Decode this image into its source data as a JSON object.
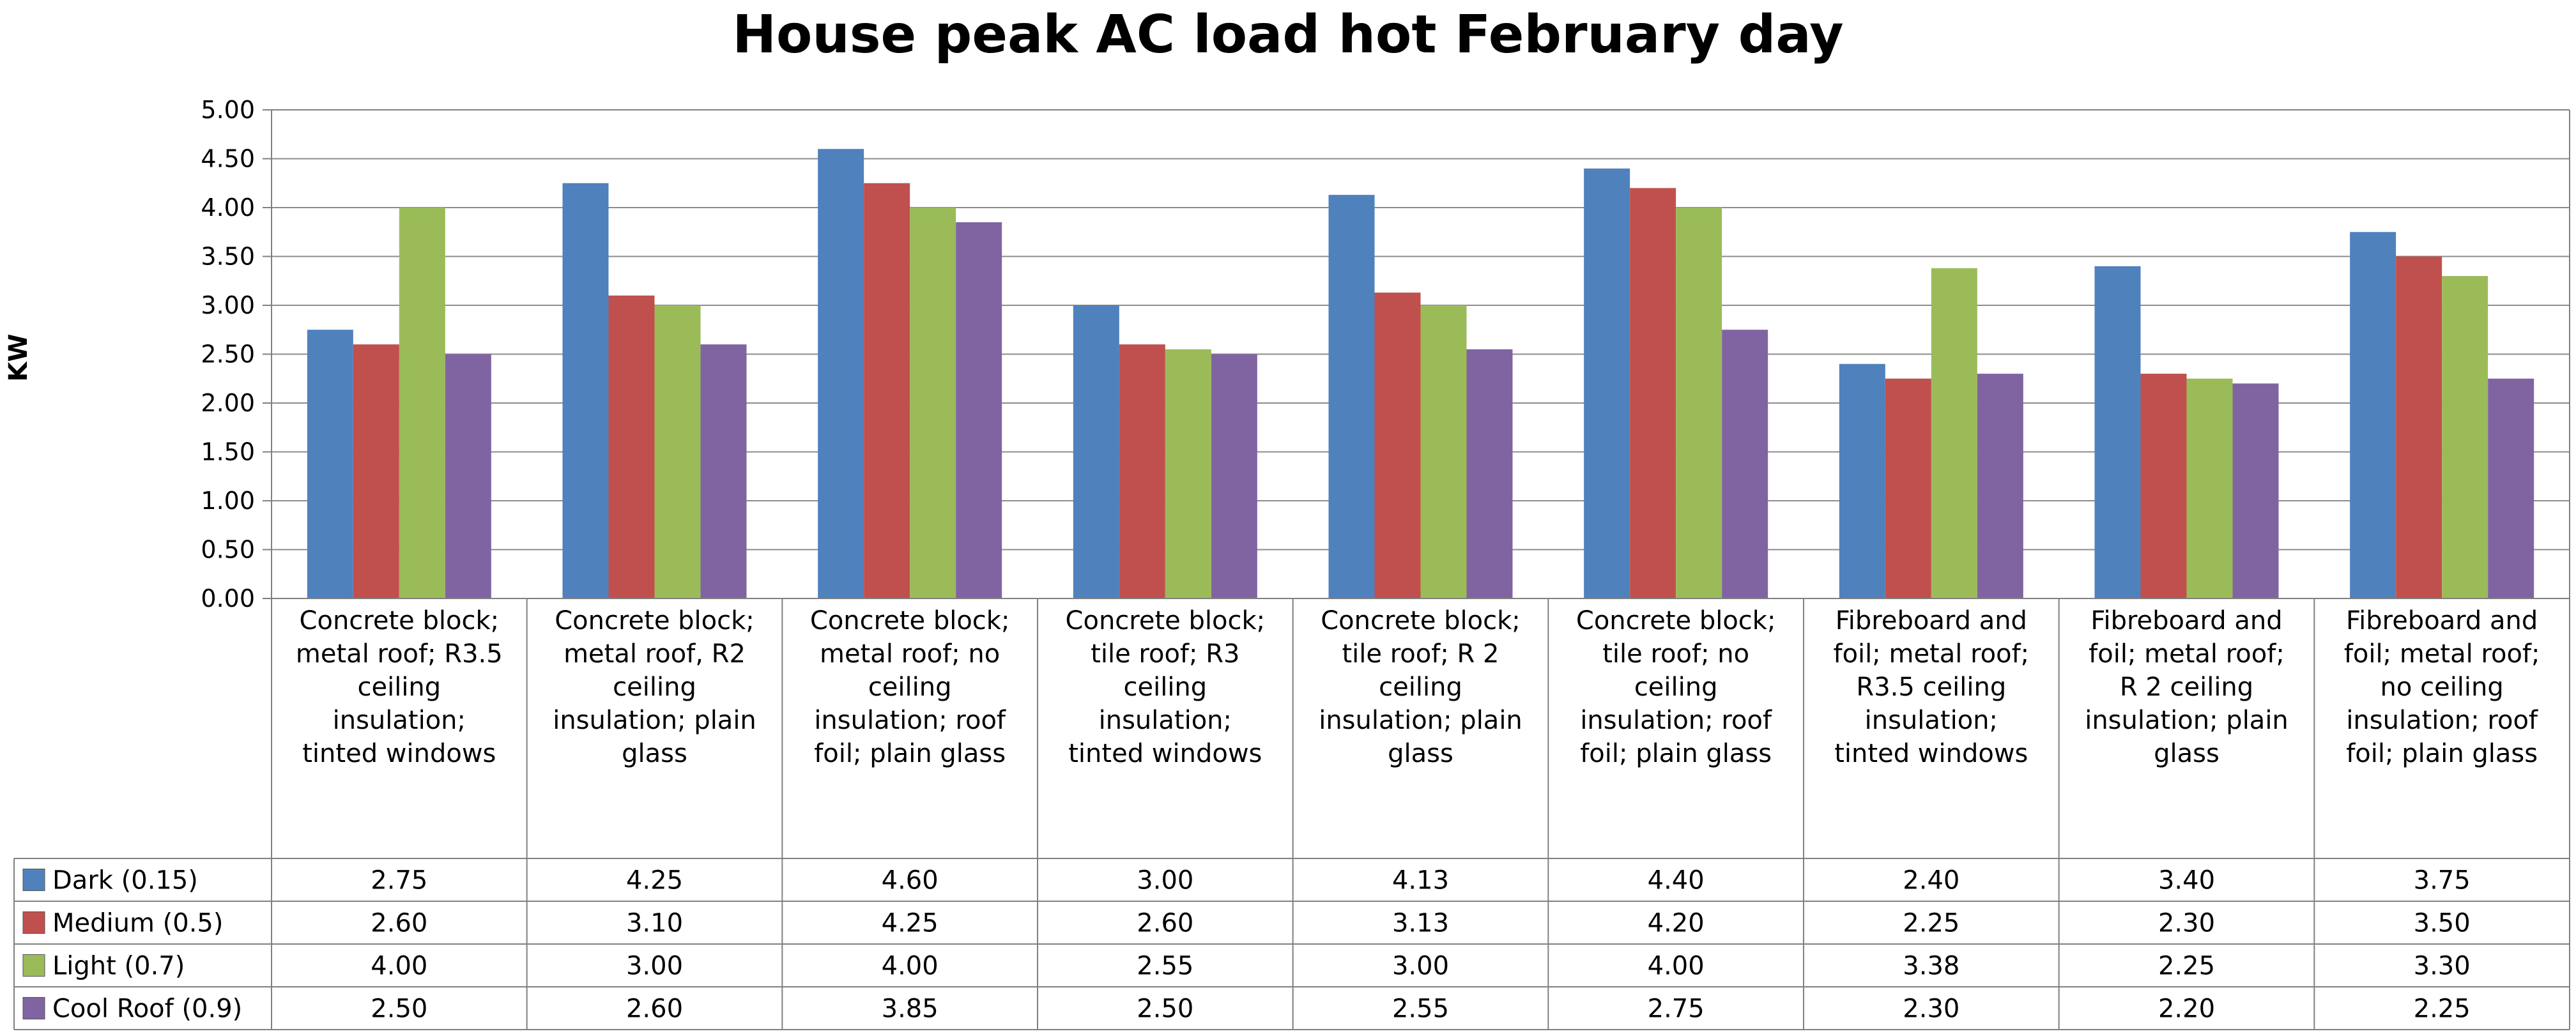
{
  "chart_data": {
    "type": "bar",
    "title": "House peak AC load hot February day",
    "ylabel": "KW",
    "ylim": [
      0,
      5
    ],
    "ytick_step": 0.5,
    "yticks": [
      "0.00",
      "0.50",
      "1.00",
      "1.50",
      "2.00",
      "2.50",
      "3.00",
      "3.50",
      "4.00",
      "4.50",
      "5.00"
    ],
    "grid": true,
    "legend": "data-table-left",
    "categories": [
      [
        "Concrete block;",
        "metal roof; R3.5",
        "ceiling",
        "insulation;",
        "tinted windows"
      ],
      [
        "Concrete block;",
        "metal roof, R2",
        "ceiling",
        "insulation; plain",
        "glass"
      ],
      [
        "Concrete block;",
        "metal roof; no",
        "ceiling",
        "insulation; roof",
        "foil; plain glass"
      ],
      [
        "Concrete block;",
        "tile roof; R3",
        "ceiling",
        "insulation;",
        "tinted windows"
      ],
      [
        "Concrete block;",
        "tile roof; R 2",
        "ceiling",
        "insulation; plain",
        "glass"
      ],
      [
        "Concrete block;",
        "tile roof; no",
        "ceiling",
        "insulation; roof",
        "foil; plain glass"
      ],
      [
        "Fibreboard and",
        "foil; metal roof;",
        "R3.5 ceiling",
        "insulation;",
        "tinted windows"
      ],
      [
        "Fibreboard and",
        "foil; metal roof;",
        "R 2 ceiling",
        "insulation; plain",
        "glass"
      ],
      [
        "Fibreboard and",
        "foil; metal roof;",
        "no ceiling",
        "insulation; roof",
        "foil; plain glass"
      ]
    ],
    "series": [
      {
        "name": "Dark (0.15)",
        "color": "#4F81BD",
        "values": [
          2.75,
          4.25,
          4.6,
          3.0,
          4.13,
          4.4,
          2.4,
          3.4,
          3.75
        ],
        "labels": [
          "2.75",
          "4.25",
          "4.60",
          "3.00",
          "4.13",
          "4.40",
          "2.40",
          "3.40",
          "3.75"
        ]
      },
      {
        "name": "Medium (0.5)",
        "color": "#C0504D",
        "values": [
          2.6,
          3.1,
          4.25,
          2.6,
          3.13,
          4.2,
          2.25,
          2.3,
          3.5
        ],
        "labels": [
          "2.60",
          "3.10",
          "4.25",
          "2.60",
          "3.13",
          "4.20",
          "2.25",
          "2.30",
          "3.50"
        ]
      },
      {
        "name": "Light (0.7)",
        "color": "#9BBB59",
        "values": [
          4.0,
          3.0,
          4.0,
          2.55,
          3.0,
          4.0,
          3.38,
          2.25,
          3.3
        ],
        "labels": [
          "4.00",
          "3.00",
          "4.00",
          "2.55",
          "3.00",
          "4.00",
          "3.38",
          "2.25",
          "3.30"
        ]
      },
      {
        "name": "Cool Roof (0.9)",
        "color": "#8064A2",
        "values": [
          2.5,
          2.6,
          3.85,
          2.5,
          2.55,
          2.75,
          2.3,
          2.2,
          2.25
        ],
        "labels": [
          "2.50",
          "2.60",
          "3.85",
          "2.50",
          "2.55",
          "2.75",
          "2.30",
          "2.20",
          "2.25"
        ]
      }
    ]
  }
}
